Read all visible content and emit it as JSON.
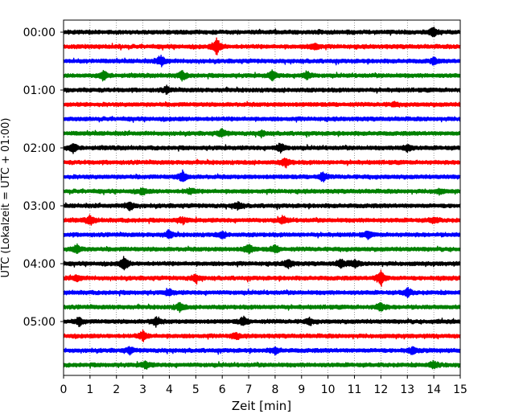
{
  "chart_data": {
    "type": "line",
    "title": "",
    "xlabel": "Zeit  [min]",
    "ylabel": "UTC (Lokalzeit = UTC + 01:00)",
    "xlim": [
      0,
      15
    ],
    "x_ticks": [
      "0",
      "1",
      "2",
      "3",
      "4",
      "5",
      "6",
      "7",
      "8",
      "9",
      "10",
      "11",
      "12",
      "13",
      "14",
      "15"
    ],
    "y_tick_labels": [
      "00:00",
      "01:00",
      "02:00",
      "03:00",
      "04:00",
      "05:00"
    ],
    "trace_interval_min": 15,
    "trace_count": 24,
    "color_cycle": [
      "#000000",
      "#ff0000",
      "#0000ff",
      "#008000"
    ],
    "grid": "vertical dotted at each minute",
    "traces": [
      {
        "start": "00:00",
        "color": "#000000",
        "events": [
          [
            14.0,
            0.35
          ]
        ]
      },
      {
        "start": "00:15",
        "color": "#ff0000",
        "events": [
          [
            5.8,
            0.6
          ],
          [
            9.5,
            0.25
          ]
        ]
      },
      {
        "start": "00:30",
        "color": "#0000ff",
        "events": [
          [
            3.7,
            0.35
          ],
          [
            14.0,
            0.2
          ]
        ]
      },
      {
        "start": "00:45",
        "color": "#008000",
        "events": [
          [
            1.5,
            0.35
          ],
          [
            4.5,
            0.3
          ],
          [
            7.9,
            0.3
          ],
          [
            9.2,
            0.25
          ]
        ]
      },
      {
        "start": "01:00",
        "color": "#000000",
        "events": [
          [
            3.9,
            0.2
          ]
        ]
      },
      {
        "start": "01:15",
        "color": "#ff0000",
        "events": [
          [
            12.5,
            0.1
          ]
        ]
      },
      {
        "start": "01:30",
        "color": "#0000ff",
        "events": []
      },
      {
        "start": "01:45",
        "color": "#008000",
        "events": [
          [
            6.0,
            0.25
          ],
          [
            7.5,
            0.15
          ]
        ]
      },
      {
        "start": "02:00",
        "color": "#000000",
        "events": [
          [
            0.35,
            0.35
          ],
          [
            8.2,
            0.3
          ],
          [
            13.0,
            0.25
          ]
        ]
      },
      {
        "start": "02:15",
        "color": "#ff0000",
        "events": [
          [
            8.4,
            0.3
          ]
        ]
      },
      {
        "start": "02:30",
        "color": "#0000ff",
        "events": [
          [
            4.5,
            0.35
          ],
          [
            9.8,
            0.3
          ]
        ]
      },
      {
        "start": "02:45",
        "color": "#008000",
        "events": [
          [
            3.0,
            0.2
          ],
          [
            4.8,
            0.2
          ],
          [
            14.2,
            0.15
          ]
        ]
      },
      {
        "start": "03:00",
        "color": "#000000",
        "events": [
          [
            2.5,
            0.3
          ],
          [
            6.6,
            0.25
          ]
        ]
      },
      {
        "start": "03:15",
        "color": "#ff0000",
        "events": [
          [
            1.0,
            0.3
          ],
          [
            4.5,
            0.2
          ],
          [
            8.3,
            0.25
          ],
          [
            14.0,
            0.2
          ]
        ]
      },
      {
        "start": "03:30",
        "color": "#0000ff",
        "events": [
          [
            4.0,
            0.25
          ],
          [
            6.0,
            0.2
          ],
          [
            11.5,
            0.2
          ]
        ]
      },
      {
        "start": "03:45",
        "color": "#008000",
        "events": [
          [
            0.5,
            0.3
          ],
          [
            7.0,
            0.3
          ],
          [
            8.0,
            0.25
          ]
        ]
      },
      {
        "start": "04:00",
        "color": "#000000",
        "events": [
          [
            2.3,
            0.45
          ],
          [
            8.5,
            0.3
          ],
          [
            10.5,
            0.3
          ],
          [
            11.0,
            0.25
          ]
        ]
      },
      {
        "start": "04:15",
        "color": "#ff0000",
        "events": [
          [
            0.5,
            0.2
          ],
          [
            5.0,
            0.25
          ],
          [
            12.0,
            0.55
          ]
        ]
      },
      {
        "start": "04:30",
        "color": "#0000ff",
        "events": [
          [
            4.0,
            0.2
          ],
          [
            13.0,
            0.3
          ]
        ]
      },
      {
        "start": "04:45",
        "color": "#008000",
        "events": [
          [
            4.4,
            0.3
          ],
          [
            12.0,
            0.3
          ]
        ]
      },
      {
        "start": "05:00",
        "color": "#000000",
        "events": [
          [
            0.6,
            0.25
          ],
          [
            3.5,
            0.3
          ],
          [
            6.8,
            0.3
          ],
          [
            9.3,
            0.2
          ]
        ]
      },
      {
        "start": "05:15",
        "color": "#ff0000",
        "events": [
          [
            3.0,
            0.3
          ],
          [
            6.5,
            0.2
          ]
        ]
      },
      {
        "start": "05:30",
        "color": "#0000ff",
        "events": [
          [
            2.5,
            0.2
          ],
          [
            8.0,
            0.2
          ],
          [
            13.2,
            0.2
          ]
        ]
      },
      {
        "start": "05:45",
        "color": "#008000",
        "events": [
          [
            3.1,
            0.25
          ],
          [
            14.0,
            0.25
          ]
        ]
      }
    ]
  }
}
